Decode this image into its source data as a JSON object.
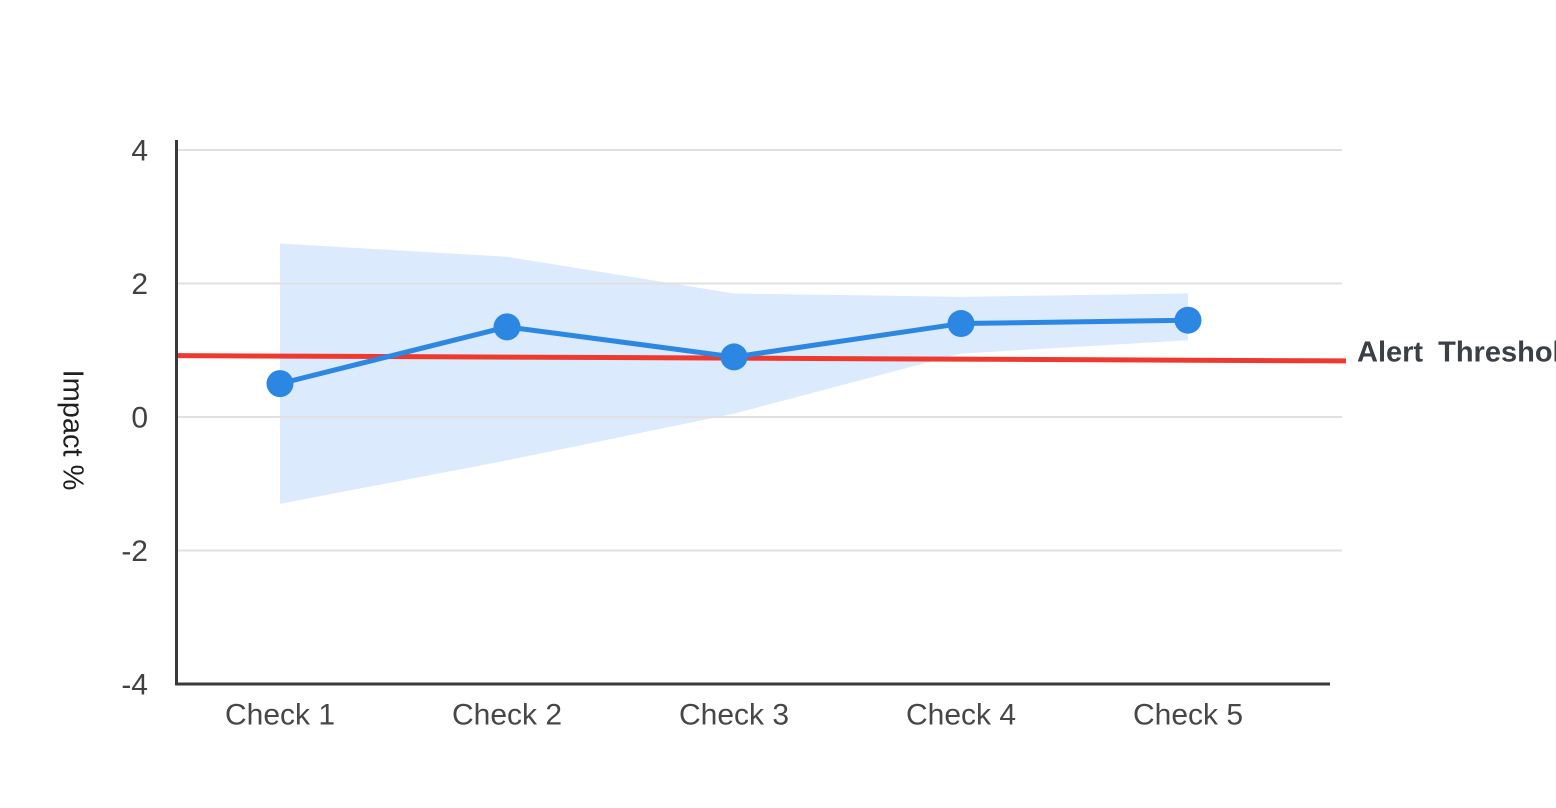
{
  "chart_data": {
    "type": "line",
    "categories": [
      "Check 1",
      "Check 2",
      "Check 3",
      "Check 4",
      "Check 5"
    ],
    "series": [
      {
        "name": "Impact",
        "values": [
          0.5,
          1.35,
          0.9,
          1.4,
          1.45
        ],
        "color": "#2B87E2",
        "marker": "circle"
      }
    ],
    "band": {
      "name": "confidence-band",
      "upper": [
        2.6,
        2.4,
        1.85,
        1.8,
        1.85
      ],
      "lower": [
        -1.3,
        -0.65,
        0.05,
        0.95,
        1.15
      ],
      "color": "#DBEAFC"
    },
    "threshold": {
      "label": "Alert Threshold",
      "start_value": 0.92,
      "end_value": 0.84,
      "color": "#EE3A2E"
    },
    "xlabel": "",
    "ylabel": "Impact %",
    "ylim": [
      -4,
      4
    ],
    "yticks": [
      4,
      2,
      0,
      -2,
      -4
    ],
    "grid": "horizontal",
    "legend_position": "none"
  },
  "colors": {
    "background": "#FFFFFF",
    "axis_line": "#37393B",
    "gridline": "#E0E0E0",
    "tick_text": "#454545",
    "ylabel_text": "#1F1F1F",
    "threshold_text": "#3A4045"
  }
}
